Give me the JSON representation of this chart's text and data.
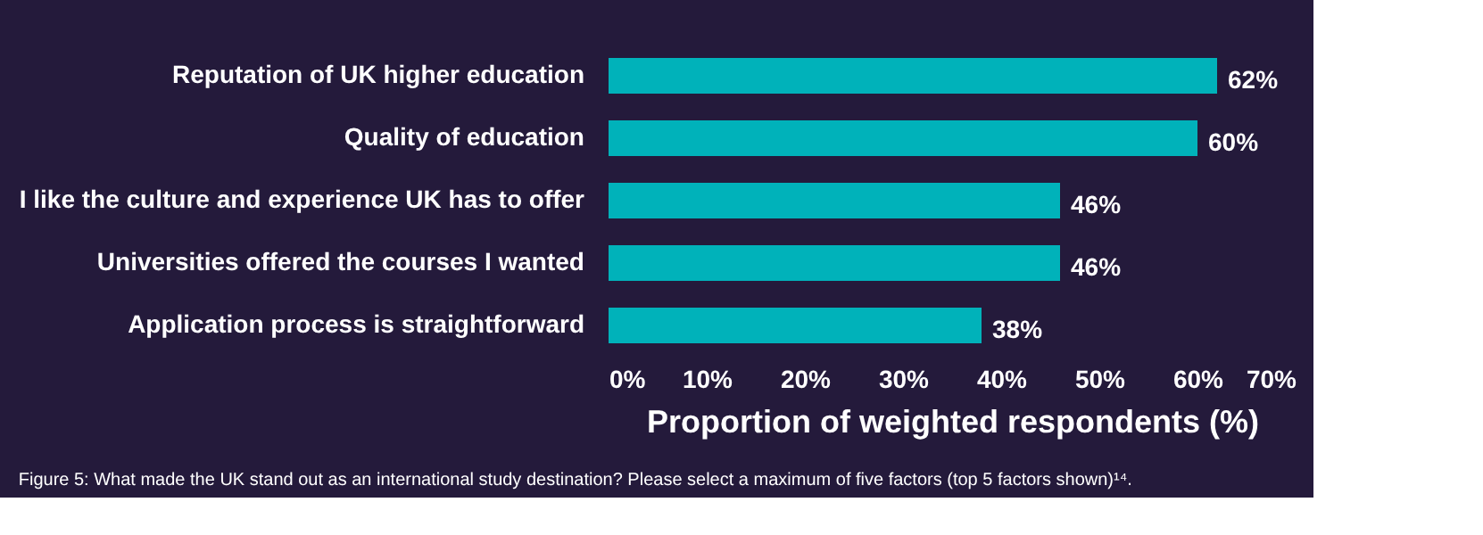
{
  "chart_data": {
    "type": "bar",
    "orientation": "horizontal",
    "categories": [
      "Reputation of UK higher education",
      "Quality of education",
      "I like the culture and experience UK has to offer",
      "Universities offered the courses I wanted",
      "Application process is straightforward"
    ],
    "values": [
      62,
      60,
      46,
      46,
      38
    ],
    "value_labels": [
      "62%",
      "60%",
      "46%",
      "46%",
      "38%"
    ],
    "color": "#00b2ba",
    "xlim": [
      0,
      70
    ],
    "xticks": [
      {
        "value": 0,
        "label": "0%"
      },
      {
        "value": 10,
        "label": "10%"
      },
      {
        "value": 20,
        "label": "20%"
      },
      {
        "value": 30,
        "label": "30%"
      },
      {
        "value": 40,
        "label": "40%"
      },
      {
        "value": 50,
        "label": "50%"
      },
      {
        "value": 60,
        "label": "60%"
      },
      {
        "value": 70,
        "label": "70%"
      }
    ],
    "xlabel": "Proportion of weighted respondents (%)",
    "grid": false,
    "annotations": [
      "Figure 5: What made the UK stand out as an international study destination? Please select a maximum of five factors (top 5 factors shown)¹⁴."
    ]
  }
}
